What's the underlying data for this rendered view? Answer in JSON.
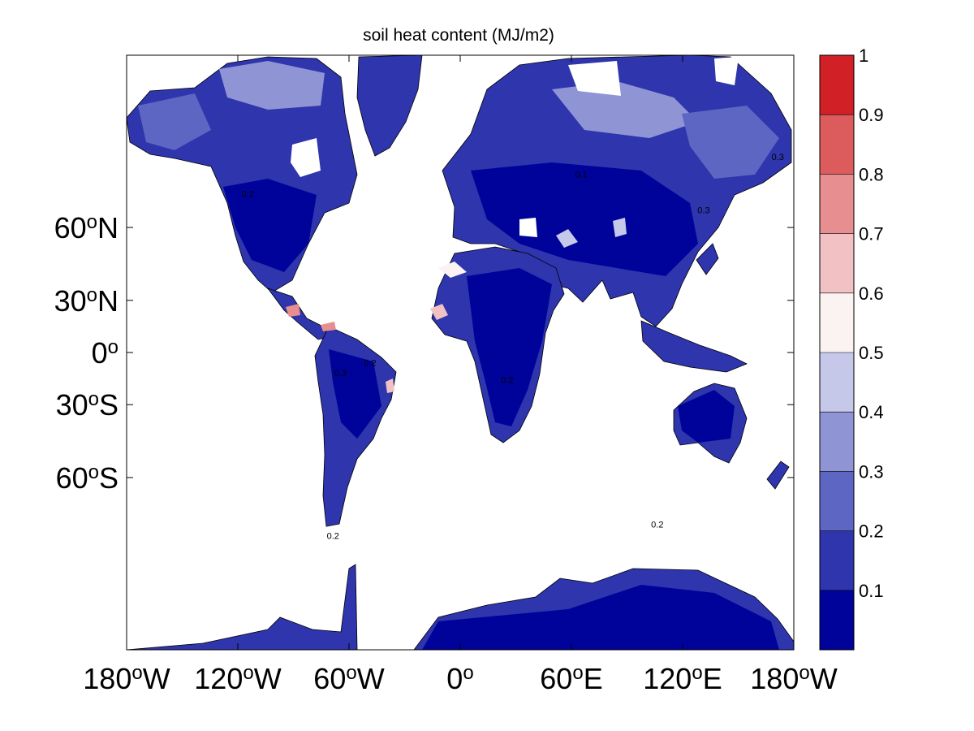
{
  "title": "soil heat content (MJ/m2)",
  "chart_data": {
    "type": "heatmap",
    "title": "soil heat content (MJ/m2)",
    "projection": "mercator",
    "x_range": [
      -180,
      180
    ],
    "y_range": [
      -85,
      85
    ],
    "x_ticks": [
      {
        "value": -180,
        "deg": "180",
        "hemi": "W"
      },
      {
        "value": -120,
        "deg": "120",
        "hemi": "W"
      },
      {
        "value": -60,
        "deg": "60",
        "hemi": "W"
      },
      {
        "value": 0,
        "deg": "0",
        "hemi": ""
      },
      {
        "value": 60,
        "deg": "60",
        "hemi": "E"
      },
      {
        "value": 120,
        "deg": "120",
        "hemi": "E"
      },
      {
        "value": 180,
        "deg": "180",
        "hemi": "W"
      }
    ],
    "y_ticks": [
      {
        "value": 60,
        "deg": "60",
        "hemi": "N"
      },
      {
        "value": 30,
        "deg": "30",
        "hemi": "N"
      },
      {
        "value": 0,
        "deg": "0",
        "hemi": ""
      },
      {
        "value": -30,
        "deg": "30",
        "hemi": "S"
      },
      {
        "value": -60,
        "deg": "60",
        "hemi": "S"
      }
    ],
    "colorbar": {
      "levels": [
        0,
        0.1,
        0.2,
        0.3,
        0.4,
        0.5,
        0.6,
        0.7,
        0.8,
        0.9,
        1.0
      ],
      "tick_labels": [
        "0.1",
        "0.2",
        "0.3",
        "0.4",
        "0.5",
        "0.6",
        "0.7",
        "0.8",
        "0.9",
        "1"
      ],
      "colors": [
        "#00039a",
        "#2e35ad",
        "#5d66c2",
        "#8f95d4",
        "#c6c8e9",
        "#fbf2f2",
        "#f2c1c3",
        "#e78e90",
        "#dc5c5e",
        "#d12126"
      ]
    },
    "contour_labels": [
      "0.1",
      "0.2",
      "0.3"
    ]
  }
}
